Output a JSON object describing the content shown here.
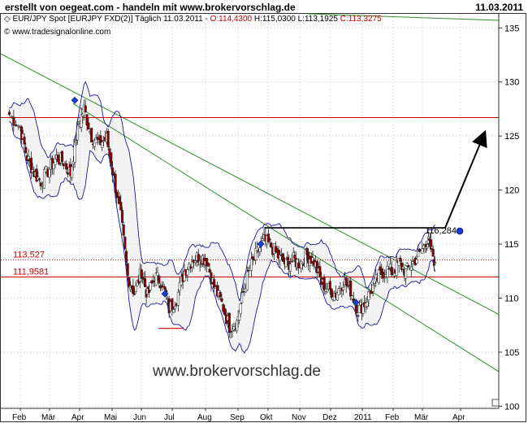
{
  "header": {
    "title": "erstellt von oegeat.com - handeln mit www.brokervorschlag.de",
    "date": "11.03.2011"
  },
  "chart_header": {
    "instrument": "EUR/JPY Spot [EURJPY FXD(2)] Täglich 11.03.2011 -",
    "open": "O:114,4300",
    "high": "H:115,0300",
    "low": "L:113,1925",
    "close": "C:113,3275",
    "copyright": "© www.tradesignalonline.com"
  },
  "watermark": "www.brokervorschlag.de",
  "colors": {
    "candle_up": "#ffffff",
    "candle_down": "#8b0000",
    "bollinger": "#1a1a9a",
    "band_fill": "#f3f3f3",
    "trendline": "#2e8b2e",
    "support_line": "#cc0000",
    "label_red": "#cc0000",
    "arrow": "#000000",
    "marker": "#1a3fd6"
  },
  "chart_data": {
    "type": "candlestick",
    "x_tick_labels": [
      "Feb",
      "Mär",
      "Apr",
      "Mai",
      "Jun",
      "Jul",
      "Aug",
      "Sep",
      "Okt",
      "Nov",
      "Dez",
      "2011",
      "Feb",
      "Mär",
      "Apr"
    ],
    "y_ticks": [
      100,
      105,
      110,
      115,
      120,
      125,
      130,
      135
    ],
    "ylim": [
      99.8,
      136.3
    ],
    "series": [
      {
        "name": "close",
        "points": [
          [
            "Jan-20",
            127.0
          ],
          [
            "Feb-01",
            125.8
          ],
          [
            "Feb-08",
            123.0
          ],
          [
            "Feb-15",
            121.6
          ],
          [
            "Feb-22",
            120.8
          ],
          [
            "Mär-01",
            122.0
          ],
          [
            "Mär-08",
            123.0
          ],
          [
            "Mär-15",
            122.6
          ],
          [
            "Mär-22",
            121.5
          ],
          [
            "Mär-29",
            125.8
          ],
          [
            "Apr-05",
            127.5
          ],
          [
            "Apr-12",
            125.0
          ],
          [
            "Apr-19",
            124.3
          ],
          [
            "Apr-26",
            124.8
          ],
          [
            "Mai-03",
            121.0
          ],
          [
            "Mai-10",
            117.5
          ],
          [
            "Mai-17",
            112.0
          ],
          [
            "Mai-24",
            110.5
          ],
          [
            "Mai-31",
            112.5
          ],
          [
            "Jun-07",
            110.2
          ],
          [
            "Jun-14",
            112.0
          ],
          [
            "Jun-21",
            111.5
          ],
          [
            "Jun-28",
            109.0
          ],
          [
            "Jul-05",
            110.0
          ],
          [
            "Jul-12",
            112.5
          ],
          [
            "Jul-19",
            113.6
          ],
          [
            "Jul-26",
            113.9
          ],
          [
            "Aug-02",
            113.5
          ],
          [
            "Aug-09",
            111.0
          ],
          [
            "Aug-16",
            109.5
          ],
          [
            "Aug-23",
            107.4
          ],
          [
            "Aug-30",
            107.8
          ],
          [
            "Sep-06",
            110.5
          ],
          [
            "Sep-13",
            112.8
          ],
          [
            "Sep-20",
            114.2
          ],
          [
            "Sep-27",
            115.3
          ],
          [
            "Okt-04",
            114.8
          ],
          [
            "Okt-11",
            113.8
          ],
          [
            "Okt-18",
            113.1
          ],
          [
            "Okt-25",
            113.5
          ],
          [
            "Nov-01",
            113.2
          ],
          [
            "Nov-08",
            114.0
          ],
          [
            "Nov-15",
            113.4
          ],
          [
            "Nov-22",
            111.4
          ],
          [
            "Nov-29",
            110.8
          ],
          [
            "Dez-06",
            110.4
          ],
          [
            "Dez-13",
            111.6
          ],
          [
            "Dez-20",
            110.7
          ],
          [
            "Dez-27",
            108.9
          ],
          [
            "Jan-03",
            109.5
          ],
          [
            "Jan-10",
            110.8
          ],
          [
            "Jan-17",
            112.0
          ],
          [
            "Jan-24",
            112.7
          ],
          [
            "Jan-31",
            112.4
          ],
          [
            "Feb-07",
            113.3
          ],
          [
            "Feb-14",
            112.4
          ],
          [
            "Feb-21",
            113.3
          ],
          [
            "Feb-28",
            114.0
          ],
          [
            "Mär-04",
            115.3
          ],
          [
            "Mär-07",
            114.9
          ],
          [
            "Mär-11",
            113.3
          ]
        ]
      }
    ],
    "annotations": {
      "support_lines": [
        {
          "label": "113,527",
          "value": 113.527
        },
        {
          "label": "111,9581",
          "value": 111.9581
        }
      ],
      "resistance_line": 126.7,
      "target_label": "116,284",
      "target_value": 116.284
    }
  }
}
